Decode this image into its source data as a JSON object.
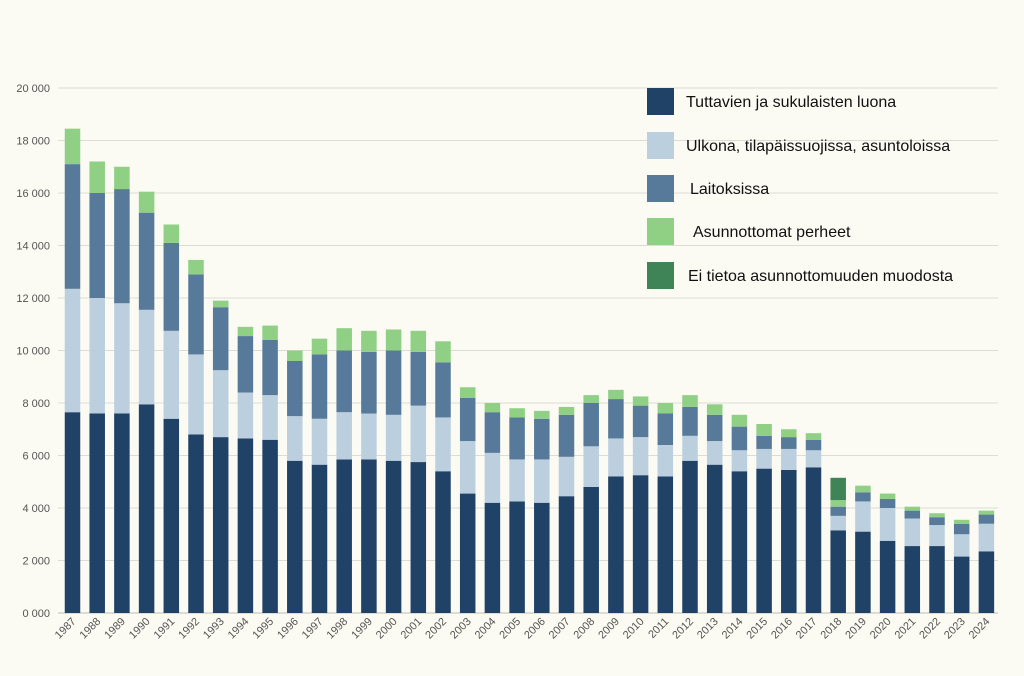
{
  "chart_data": {
    "type": "bar",
    "stacked": true,
    "title": "",
    "xlabel": "",
    "ylabel": "",
    "ylim": [
      0,
      20000
    ],
    "yticks": [
      0,
      2000,
      4000,
      6000,
      8000,
      10000,
      12000,
      14000,
      16000,
      18000,
      20000
    ],
    "ytick_labels": [
      "0 000",
      "2 000",
      "4 000",
      "6 000",
      "8 000",
      "10 000",
      "12 000",
      "14 000",
      "16 000",
      "18 000",
      "20 000"
    ],
    "grid": true,
    "legend_position": "top-right",
    "categories": [
      "1987",
      "1988",
      "1989",
      "1990",
      "1991",
      "1992",
      "1993",
      "1994",
      "1995",
      "1996",
      "1997",
      "1998",
      "1999",
      "2000",
      "2001",
      "2002",
      "2003",
      "2004",
      "2005",
      "2006",
      "2007",
      "2008",
      "2009",
      "2010",
      "2011",
      "2012",
      "2013",
      "2014",
      "2015",
      "2016",
      "2017",
      "2018",
      "2019",
      "2020",
      "2021",
      "2022",
      "2023",
      "2024"
    ],
    "series": [
      {
        "name": "Tuttavien ja sukulaisten luona",
        "color": "#1f4266",
        "values": [
          7650,
          7600,
          7600,
          7950,
          7400,
          6800,
          6700,
          6650,
          6600,
          5800,
          5650,
          5850,
          5850,
          5800,
          5750,
          5400,
          4550,
          4200,
          4250,
          4200,
          4450,
          4800,
          5200,
          5250,
          5200,
          5800,
          5650,
          5400,
          5500,
          5450,
          5550,
          3150,
          3100,
          2750,
          2550,
          2550,
          2150,
          2350
        ]
      },
      {
        "name": "Ulkona, tilapäissuojissa, asuntoloissa",
        "color": "#bccfde",
        "values": [
          4700,
          4400,
          4200,
          3600,
          3350,
          3050,
          2550,
          1750,
          1700,
          1700,
          1750,
          1800,
          1750,
          1750,
          2150,
          2050,
          2000,
          1900,
          1600,
          1650,
          1500,
          1550,
          1450,
          1450,
          1200,
          950,
          900,
          800,
          750,
          800,
          650,
          550,
          1150,
          1250,
          1050,
          800,
          850,
          1050
        ]
      },
      {
        "name": "Laitoksissa",
        "color": "#577a9a",
        "values": [
          4750,
          4000,
          4350,
          3700,
          3350,
          3050,
          2400,
          2150,
          2100,
          2100,
          2450,
          2350,
          2350,
          2450,
          2050,
          2100,
          1650,
          1550,
          1600,
          1550,
          1600,
          1650,
          1500,
          1200,
          1200,
          1100,
          1000,
          900,
          500,
          450,
          400,
          350,
          350,
          350,
          300,
          300,
          400,
          350
        ]
      },
      {
        "name": "Asunnottomat perheet",
        "color": "#8fd085",
        "values": [
          1350,
          1200,
          850,
          800,
          700,
          550,
          250,
          350,
          550,
          400,
          600,
          850,
          800,
          800,
          800,
          800,
          400,
          350,
          350,
          300,
          300,
          300,
          350,
          350,
          400,
          450,
          400,
          450,
          450,
          300,
          250,
          250,
          250,
          200,
          150,
          150,
          150,
          150
        ]
      },
      {
        "name": "Ei tietoa asunnottomuuden muodosta",
        "color": "#3f8456",
        "values": [
          0,
          0,
          0,
          0,
          0,
          0,
          0,
          0,
          0,
          0,
          0,
          0,
          0,
          0,
          0,
          0,
          0,
          0,
          0,
          0,
          0,
          0,
          0,
          0,
          0,
          0,
          0,
          0,
          0,
          0,
          0,
          850,
          0,
          0,
          0,
          0,
          0,
          0
        ]
      }
    ]
  }
}
